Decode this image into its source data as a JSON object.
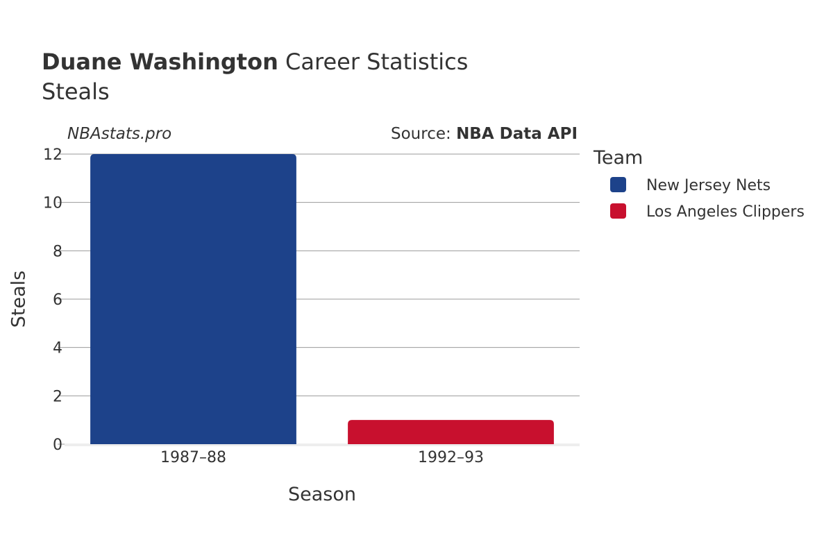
{
  "header": {
    "title_bold": "Duane Washington",
    "title_rest": " Career Statistics",
    "subtitle": "Steals"
  },
  "watermark": "NBAstats.pro",
  "source": {
    "prefix": "Source: ",
    "name": "NBA Data API"
  },
  "legend": {
    "title": "Team",
    "placement": "right",
    "items": [
      {
        "label": "New Jersey Nets",
        "color": "#1d428a"
      },
      {
        "label": "Los Angeles Clippers",
        "color": "#c8102e"
      }
    ]
  },
  "chart_data": {
    "type": "bar",
    "title": "Duane Washington Career Statistics",
    "subtitle": "Steals",
    "xlabel": "Season",
    "ylabel": "Steals",
    "categories": [
      "1987–88",
      "1992–93"
    ],
    "series": [
      {
        "name": "New Jersey Nets",
        "color": "#1d428a",
        "points": [
          {
            "x": "1987–88",
            "y": 12
          }
        ]
      },
      {
        "name": "Los Angeles Clippers",
        "color": "#c8102e",
        "points": [
          {
            "x": "1992–93",
            "y": 1
          }
        ]
      }
    ],
    "ylim": [
      0,
      12
    ],
    "yticks": [
      0,
      2,
      4,
      6,
      8,
      10,
      12
    ],
    "grid": true,
    "legend_placement": "right"
  }
}
